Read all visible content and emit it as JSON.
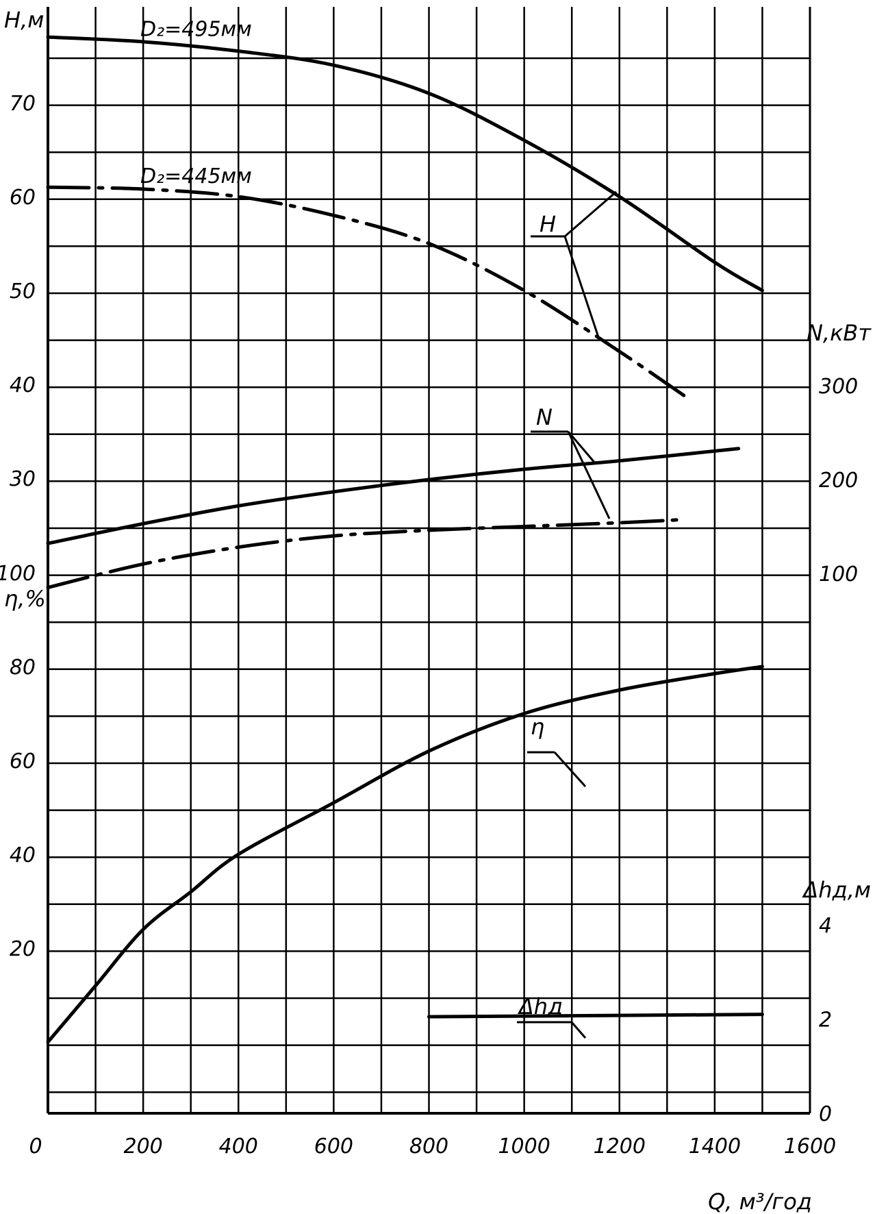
{
  "chart_data": {
    "type": "line",
    "x_axis": {
      "label": "Q, м³/год",
      "range": [
        0,
        1600
      ],
      "ticks": [
        "0",
        "200",
        "400",
        "600",
        "800",
        "1000",
        "1200",
        "1400",
        "1600"
      ]
    },
    "axes": {
      "H": {
        "label": "H,м",
        "range": [
          0,
          80
        ],
        "ticks": [
          "70",
          "60",
          "50",
          "40",
          "30"
        ],
        "tick_values": [
          70,
          60,
          50,
          40,
          30
        ]
      },
      "N": {
        "label": "N,кВт",
        "range": [
          0,
          400
        ],
        "ticks": [
          "300",
          "200",
          "100"
        ],
        "tick_values": [
          300,
          200,
          100
        ]
      },
      "eta": {
        "label": "η,%",
        "range": [
          0,
          110
        ],
        "ticks": [
          "100",
          "80",
          "60",
          "40",
          "20"
        ],
        "tick_values": [
          100,
          80,
          60,
          40,
          20
        ]
      },
      "dh": {
        "label": "Δhд,м",
        "range": [
          0,
          6
        ],
        "ticks": [
          "4",
          "2",
          "0"
        ],
        "tick_values": [
          4,
          2,
          0
        ]
      }
    },
    "grid": true,
    "series": [
      {
        "name": "D₂=495мм",
        "curve": "H",
        "axis": "H",
        "style": "solid",
        "x": [
          0,
          200,
          400,
          600,
          800,
          1000,
          1200,
          1400,
          1500
        ],
        "y": [
          77,
          76.5,
          75.5,
          74,
          71,
          66,
          60,
          53,
          50
        ]
      },
      {
        "name": "D₂=445мм",
        "curve": "H",
        "axis": "H",
        "style": "dashdot",
        "x": [
          0,
          200,
          400,
          600,
          800,
          1000,
          1200,
          1350
        ],
        "y": [
          61,
          60.8,
          60,
          58,
          55,
          50,
          43.5,
          38.3
        ]
      },
      {
        "curve": "N",
        "axis": "N",
        "style": "solid",
        "x": [
          0,
          200,
          400,
          600,
          800,
          1000,
          1200,
          1450
        ],
        "y": [
          132,
          153,
          172,
          187,
          200,
          211,
          220,
          233
        ]
      },
      {
        "curve": "N",
        "axis": "N",
        "style": "dashdot",
        "x": [
          0,
          200,
          400,
          600,
          800,
          1000,
          1200,
          1320
        ],
        "y": [
          85,
          110,
          128,
          140,
          146,
          150,
          154,
          157
        ]
      },
      {
        "curve": "η",
        "axis": "eta",
        "style": "solid",
        "x": [
          0,
          100,
          200,
          300,
          400,
          600,
          800,
          1000,
          1200,
          1400,
          1500
        ],
        "y": [
          0,
          12,
          24,
          32,
          40,
          51,
          62,
          70,
          75,
          78.5,
          80
        ]
      },
      {
        "curve": "Δhд",
        "axis": "dh",
        "style": "solid",
        "x": [
          800,
          1500
        ],
        "y": [
          2.05,
          2.1
        ]
      }
    ],
    "annotations": [
      "H",
      "N",
      "η",
      "Δhд"
    ]
  }
}
